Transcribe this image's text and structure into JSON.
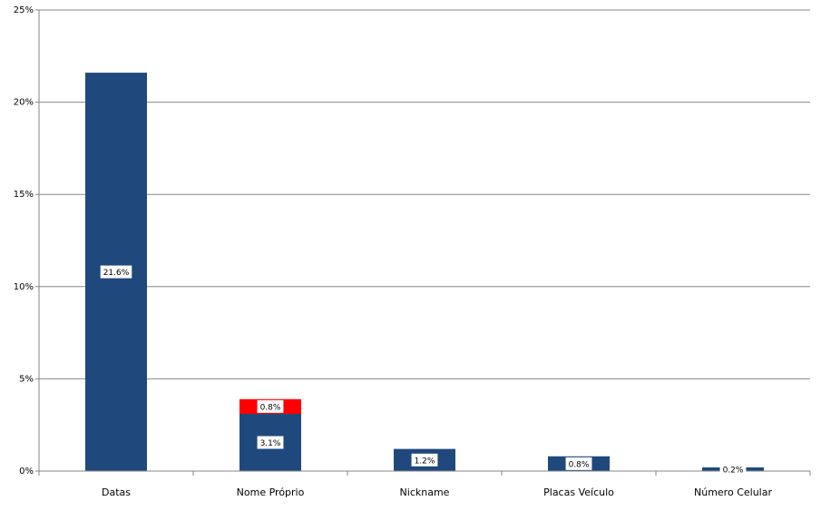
{
  "chart_data": {
    "type": "stacked-bar",
    "categories": [
      "Datas",
      "Nome Próprio",
      "Nickname",
      "Placas Veículo",
      "Número Celular"
    ],
    "series": [
      {
        "color": "#1f497d",
        "values": [
          21.6,
          3.1,
          1.2,
          0.8,
          0.2
        ],
        "value_labels": [
          "21.6%",
          "3.1%",
          "1.2%",
          "0.8%",
          "0.2%"
        ]
      },
      {
        "color": "#ff0000",
        "values": [
          null,
          0.8,
          null,
          null,
          null
        ],
        "value_labels": [
          null,
          "0.8%",
          null,
          null,
          null
        ]
      }
    ],
    "ylim": [
      0,
      25
    ],
    "yticks": [
      {
        "value": 0,
        "label": "0%"
      },
      {
        "value": 5,
        "label": "5%"
      },
      {
        "value": 10,
        "label": "10%"
      },
      {
        "value": 15,
        "label": "15%"
      },
      {
        "value": 20,
        "label": "20%"
      },
      {
        "value": 25,
        "label": "25%"
      }
    ],
    "grid": true
  }
}
